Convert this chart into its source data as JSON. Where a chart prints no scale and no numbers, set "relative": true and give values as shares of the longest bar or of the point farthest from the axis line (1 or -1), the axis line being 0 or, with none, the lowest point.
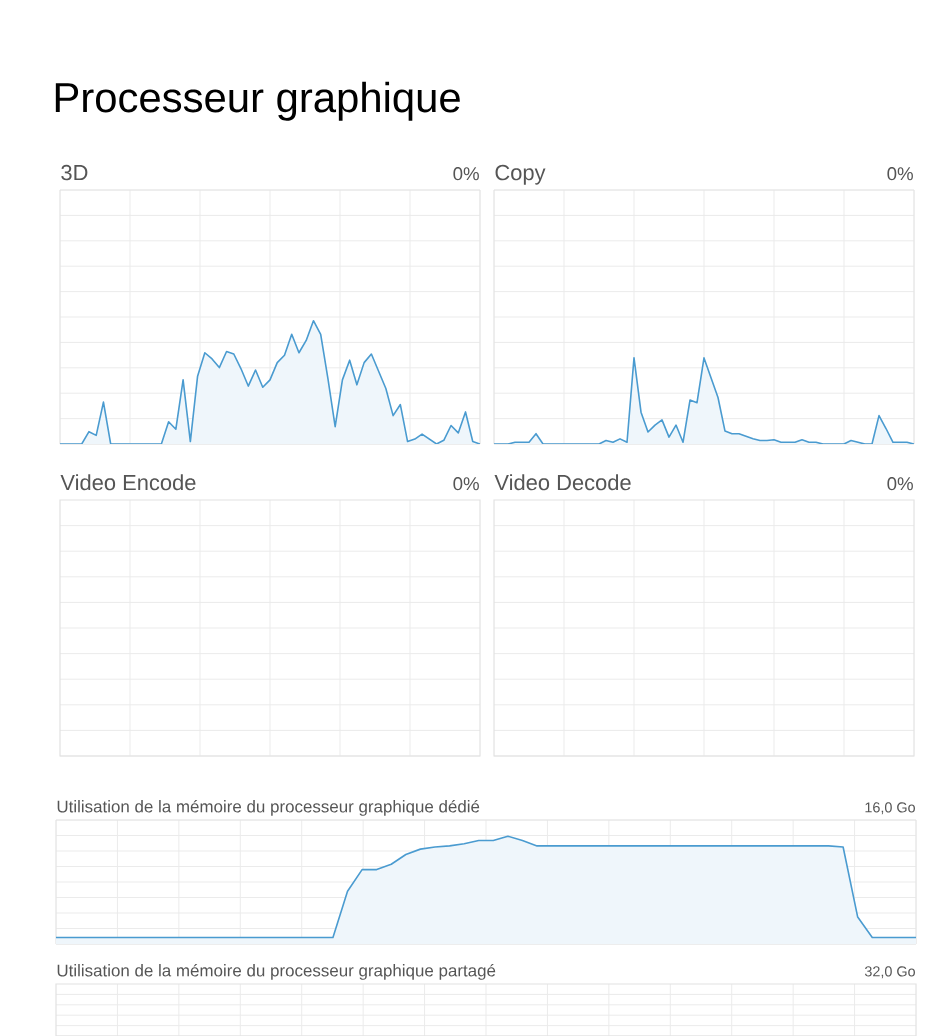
{
  "chart_data": [
    {
      "type": "other",
      "title": "Processeur graphique"
    },
    {
      "type": "area",
      "title": "3D",
      "annotations": [
        "0%"
      ],
      "relative": true,
      "grid": true,
      "color": "#4a9bd0",
      "categories": [
        null,
        null,
        null,
        null,
        null,
        null,
        null,
        null,
        null,
        null,
        null,
        null,
        null,
        null,
        null,
        null,
        null,
        null,
        null,
        null,
        null,
        null,
        null,
        null,
        null,
        null,
        null,
        null,
        null,
        null,
        null,
        null,
        null,
        null,
        null,
        null,
        null,
        null,
        null,
        null,
        null,
        null,
        null,
        null,
        null,
        null,
        null,
        null,
        null,
        null,
        null,
        null,
        null,
        null,
        null,
        null,
        null,
        null,
        null
      ],
      "values": [
        0,
        0,
        0,
        0,
        0.1,
        0.07,
        0.34,
        0,
        0,
        0,
        0,
        0,
        0,
        0,
        0,
        0.18,
        0.12,
        0.52,
        0.02,
        0.55,
        0.74,
        0.69,
        0.62,
        0.75,
        0.73,
        0.61,
        0.47,
        0.6,
        0.46,
        0.52,
        0.66,
        0.72,
        0.89,
        0.74,
        0.84,
        1,
        0.89,
        0.53,
        0.14,
        0.52,
        0.68,
        0.48,
        0.66,
        0.73,
        0.59,
        0.45,
        0.23,
        0.32,
        0.02,
        0.04,
        0.08,
        0.04,
        0,
        0.03,
        0.15,
        0.09,
        0.26,
        0.02,
        0
      ]
    },
    {
      "type": "area",
      "title": "Copy",
      "annotations": [
        "0%"
      ],
      "relative": true,
      "grid": true,
      "color": "#4a9bd0",
      "categories": [
        null,
        null,
        null,
        null,
        null,
        null,
        null,
        null,
        null,
        null,
        null,
        null,
        null,
        null,
        null,
        null,
        null,
        null,
        null,
        null,
        null,
        null,
        null,
        null,
        null,
        null,
        null,
        null,
        null,
        null,
        null,
        null,
        null,
        null,
        null,
        null,
        null,
        null,
        null,
        null,
        null,
        null,
        null,
        null,
        null,
        null,
        null,
        null,
        null,
        null,
        null,
        null,
        null,
        null,
        null,
        null,
        null,
        null,
        null,
        null,
        null
      ],
      "values": [
        0,
        0,
        0,
        0.02,
        0.02,
        0.02,
        0.12,
        0,
        0,
        0,
        0,
        0,
        0,
        0,
        0,
        0,
        0.04,
        0.02,
        0.06,
        0.02,
        1,
        0.37,
        0.14,
        0.22,
        0.28,
        0.08,
        0.22,
        0.02,
        0.51,
        0.48,
        1,
        0.77,
        0.54,
        0.15,
        0.12,
        0.12,
        0.09,
        0.06,
        0.04,
        0.04,
        0.05,
        0.02,
        0.02,
        0.02,
        0.05,
        0.02,
        0.02,
        0,
        0,
        0,
        0,
        0.04,
        0.02,
        0,
        0,
        0.33,
        0.18,
        0.02,
        0.02,
        0.02,
        0
      ]
    },
    {
      "type": "other",
      "title": "Video Encode",
      "annotations": [
        "0%"
      ]
    },
    {
      "type": "other",
      "title": "Video Decode",
      "annotations": [
        "0%"
      ]
    },
    {
      "type": "area",
      "title": "Utilisation de la mémoire du processeur graphique dédié",
      "annotations": [
        "16,0 Go"
      ],
      "relative": true,
      "grid": true,
      "color": "#4a9bd0",
      "categories": [
        null,
        null,
        null,
        null,
        null,
        null,
        null,
        null,
        null,
        null,
        null,
        null,
        null,
        null,
        null,
        null,
        null,
        null,
        null,
        null,
        null,
        null,
        null,
        null,
        null,
        null,
        null,
        null,
        null,
        null,
        null,
        null,
        null,
        null,
        null,
        null,
        null,
        null,
        null,
        null,
        null,
        null,
        null,
        null,
        null,
        null,
        null,
        null,
        null,
        null,
        null,
        null,
        null,
        null,
        null,
        null,
        null,
        null,
        null,
        null
      ],
      "values": [
        0.06,
        0.06,
        0.06,
        0.06,
        0.06,
        0.06,
        0.06,
        0.06,
        0.06,
        0.06,
        0.06,
        0.06,
        0.06,
        0.06,
        0.06,
        0.06,
        0.06,
        0.06,
        0.06,
        0.06,
        0.49,
        0.69,
        0.69,
        0.74,
        0.83,
        0.88,
        0.9,
        0.91,
        0.93,
        0.96,
        0.96,
        1,
        0.96,
        0.91,
        0.91,
        0.91,
        0.91,
        0.91,
        0.91,
        0.91,
        0.91,
        0.91,
        0.91,
        0.91,
        0.91,
        0.91,
        0.91,
        0.91,
        0.91,
        0.91,
        0.91,
        0.91,
        0.91,
        0.91,
        0.9,
        0.25,
        0.06,
        0.06,
        0.06,
        0.06
      ]
    },
    {
      "type": "other",
      "title": "Utilisation de la mémoire du processeur graphique partagé",
      "annotations": [
        "32,0 Go"
      ]
    }
  ]
}
